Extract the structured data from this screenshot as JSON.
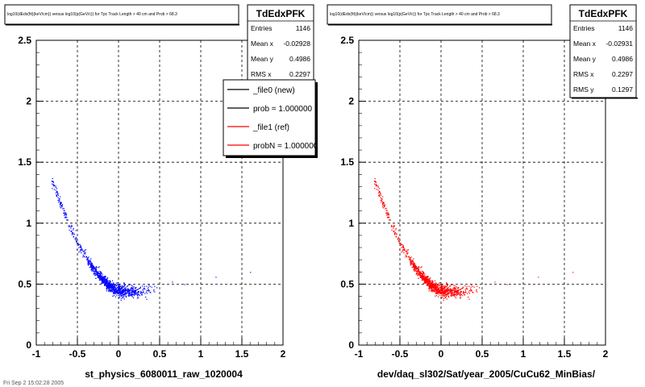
{
  "footer_text": "Fri Sep 2 15:02:28 2005",
  "chart_data": [
    {
      "type": "scatter",
      "title": "log10(dEdx(fit)(keV/cm)) versus log10(p(GeV/c)) for Tpc Track Length > 40 cm and Prob > 68.3",
      "xlabel": "st_physics_6080011_raw_1020004",
      "ylabel": "",
      "xlim": [
        -1,
        2
      ],
      "ylim": [
        0,
        2.5
      ],
      "x_ticks": [
        "-1",
        "-0.5",
        "0",
        "0.5",
        "1",
        "1.5",
        "2"
      ],
      "y_ticks": [
        "0",
        "0.5",
        "1",
        "1.5",
        "2",
        "2.5"
      ],
      "grid": true,
      "series": [
        {
          "name": "_file0 (new)",
          "color": "#0000ff"
        }
      ],
      "curve": {
        "x": [
          -0.8,
          -0.7,
          -0.6,
          -0.5,
          -0.4,
          -0.3,
          -0.2,
          -0.1,
          0.0,
          0.1,
          0.2,
          0.3,
          0.4,
          0.5
        ],
        "y": [
          1.33,
          1.15,
          0.98,
          0.84,
          0.72,
          0.62,
          0.54,
          0.48,
          0.45,
          0.44,
          0.44,
          0.45,
          0.46,
          0.47
        ]
      },
      "stats": {
        "name": "TdEdxPFK",
        "rows": [
          {
            "label": "Entries",
            "value": "1146"
          },
          {
            "label": "Mean x",
            "value": "-0.02928"
          },
          {
            "label": "Mean y",
            "value": "0.4986"
          },
          {
            "label": "RMS x",
            "value": "0.2297"
          }
        ]
      },
      "legend": {
        "placement": "top-right",
        "entries": [
          {
            "label": "_file0 (new)",
            "color": "#000000"
          },
          {
            "label": "prob = 1.000000",
            "color": "#000000"
          },
          {
            "label": "_file1 (ref)",
            "color": "#ff0000"
          },
          {
            "label": "probN = 1.000000",
            "color": "#ff0000"
          }
        ]
      }
    },
    {
      "type": "scatter",
      "title": "log10(dEdx(fit)(keV/cm)) versus log10(p(GeV/c)) for Tpc Track Length > 40 cm and Prob > 68.3",
      "xlabel": "dev/daq_sl302/Sat/year_2005/CuCu62_MinBias/",
      "ylabel": "",
      "xlim": [
        -1,
        2
      ],
      "ylim": [
        0,
        2.5
      ],
      "x_ticks": [
        "-1",
        "-0.5",
        "0",
        "0.5",
        "1",
        "1.5",
        "2"
      ],
      "y_ticks": [
        "0",
        "0.5",
        "1",
        "1.5",
        "2",
        "2.5"
      ],
      "grid": true,
      "series": [
        {
          "name": "_file1 (ref)",
          "color": "#ff0000"
        }
      ],
      "curve": {
        "x": [
          -0.8,
          -0.7,
          -0.6,
          -0.5,
          -0.4,
          -0.3,
          -0.2,
          -0.1,
          0.0,
          0.1,
          0.2,
          0.3,
          0.4,
          0.5
        ],
        "y": [
          1.33,
          1.15,
          0.98,
          0.84,
          0.72,
          0.62,
          0.54,
          0.48,
          0.45,
          0.44,
          0.44,
          0.45,
          0.46,
          0.47
        ]
      },
      "stats": {
        "name": "TdEdxPFK",
        "rows": [
          {
            "label": "Entries",
            "value": "1146"
          },
          {
            "label": "Mean x",
            "value": "-0.02931"
          },
          {
            "label": "Mean y",
            "value": "0.4986"
          },
          {
            "label": "RMS x",
            "value": "0.2297"
          },
          {
            "label": "RMS y",
            "value": "0.1297"
          }
        ]
      }
    }
  ]
}
